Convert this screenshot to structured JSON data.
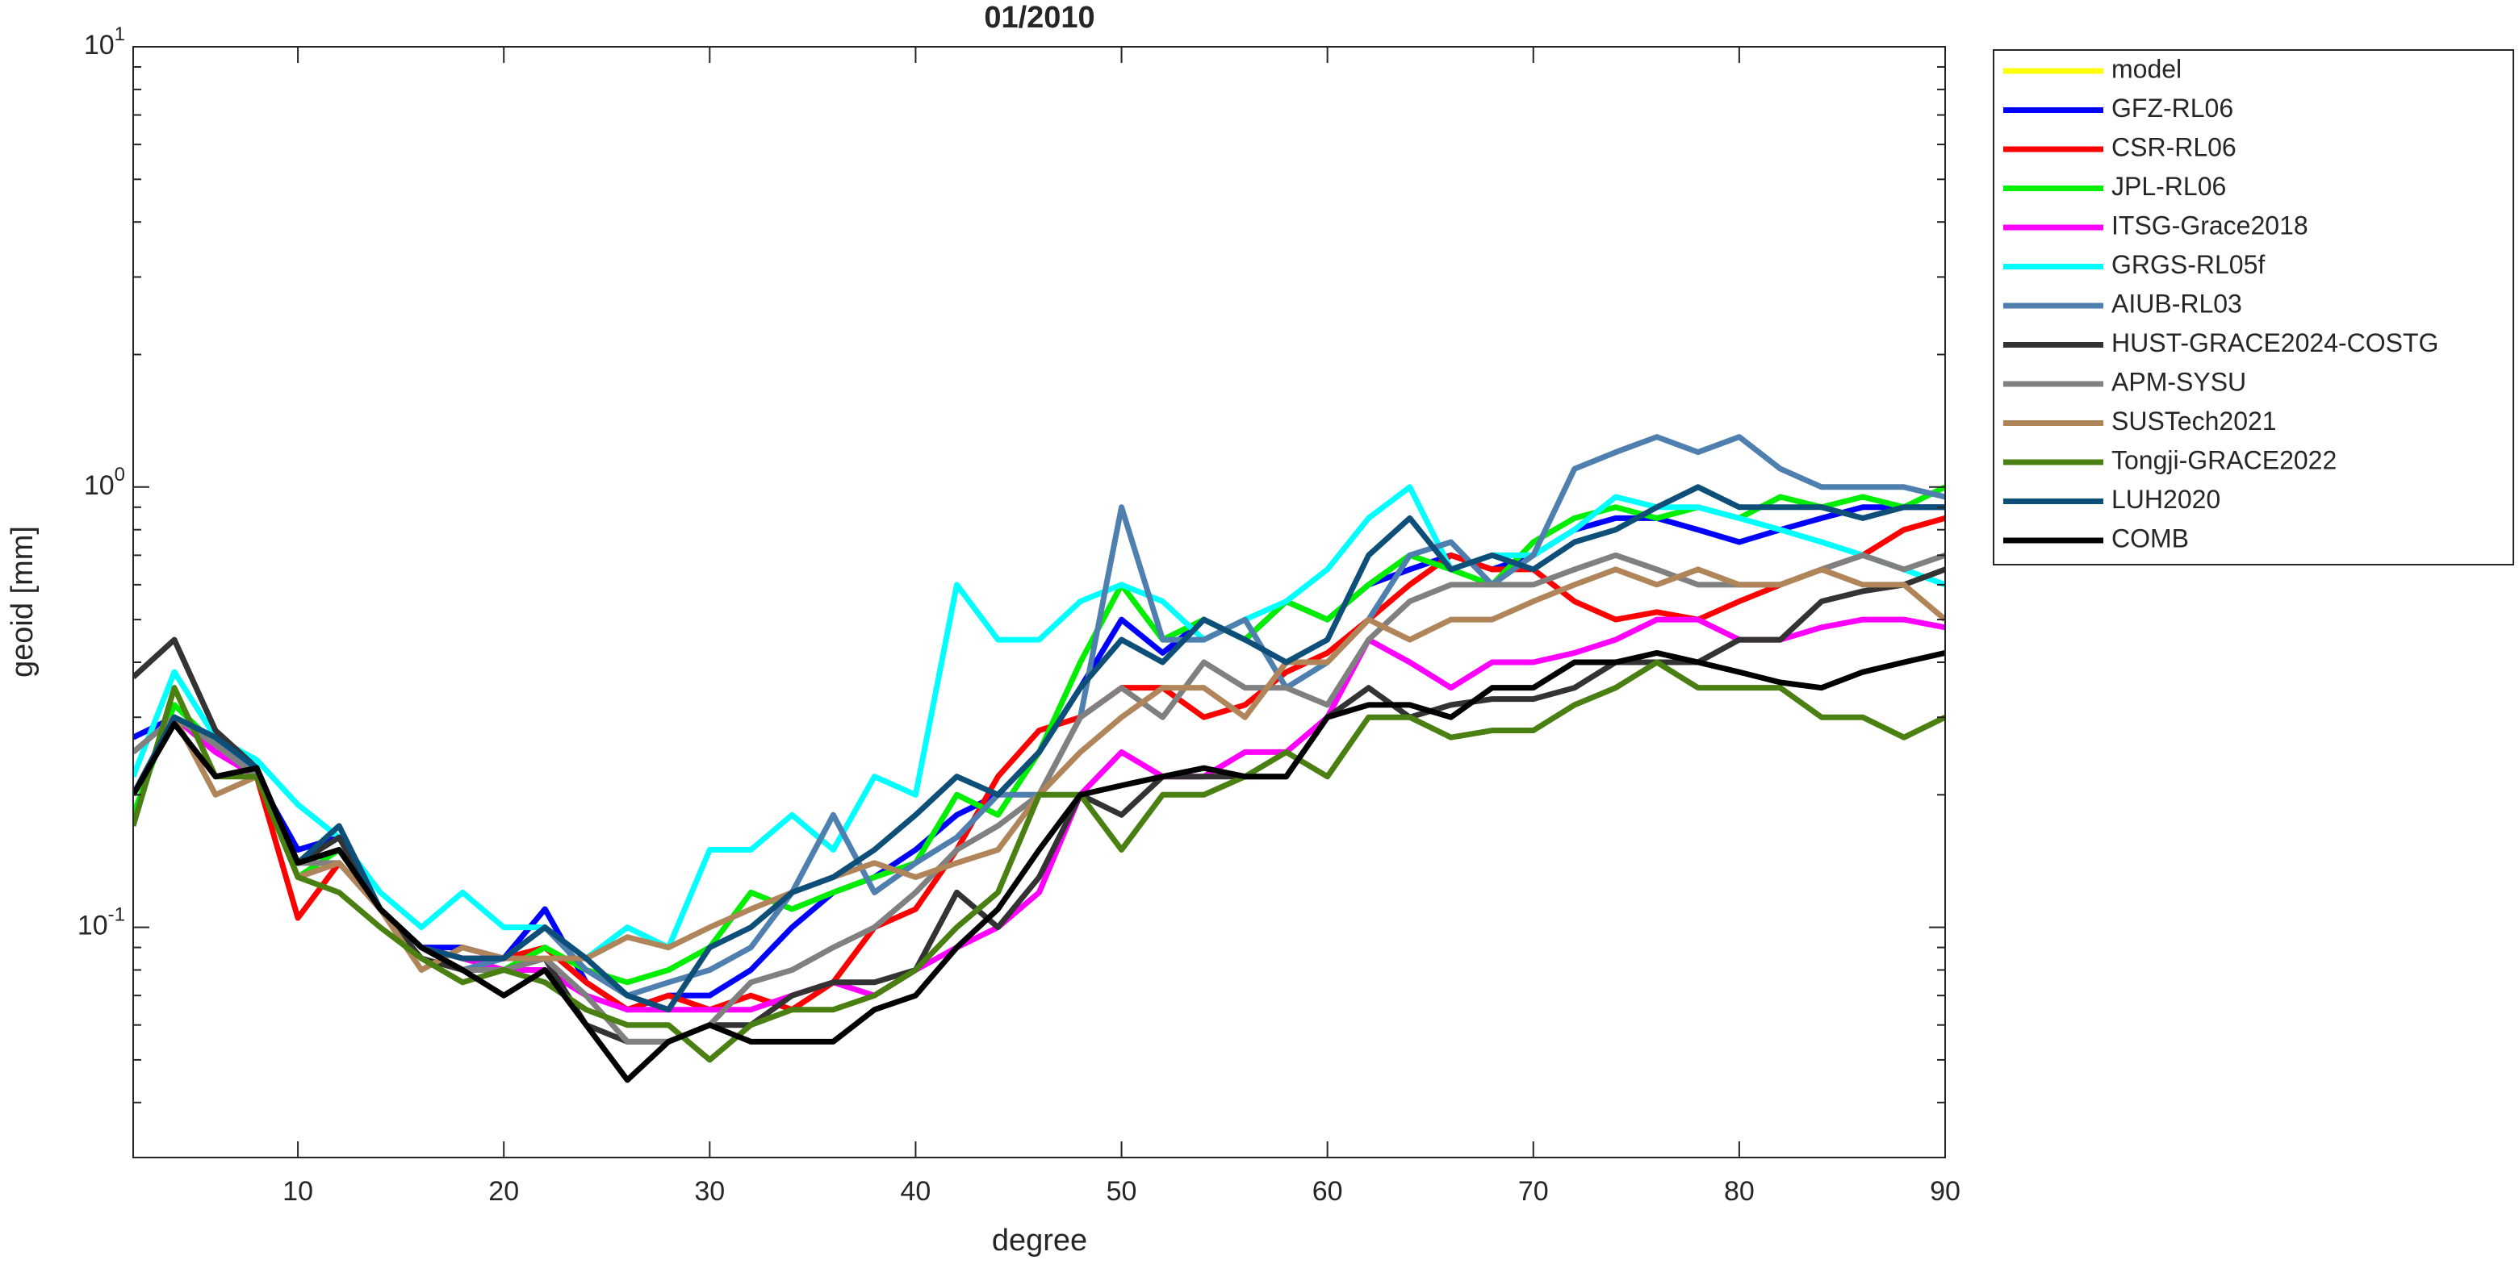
{
  "chart_data": {
    "type": "line",
    "title": "01/2010",
    "xlabel": "degree",
    "ylabel": "geoid [mm]",
    "yscale": "log",
    "grid": false,
    "legend": "outside-top-right",
    "xlim": [
      2,
      90
    ],
    "ylim": [
      0.03,
      10
    ],
    "xticks": [
      10,
      20,
      30,
      40,
      50,
      60,
      70,
      80,
      90
    ],
    "yticks": [
      {
        "value": 0.1,
        "label": "10^{-1}"
      },
      {
        "value": 1,
        "label": "10^{0}"
      },
      {
        "value": 10,
        "label": "10^{1}"
      }
    ],
    "yminorticks": [
      0.04,
      0.05,
      0.06,
      0.07,
      0.08,
      0.09,
      0.2,
      0.3,
      0.4,
      0.5,
      0.6,
      0.7,
      0.8,
      0.9,
      2,
      3,
      4,
      5,
      6,
      7,
      8,
      9
    ],
    "x": [
      2,
      4,
      6,
      8,
      10,
      12,
      14,
      16,
      18,
      20,
      22,
      24,
      26,
      28,
      30,
      32,
      34,
      36,
      38,
      40,
      42,
      44,
      46,
      48,
      50,
      52,
      54,
      56,
      58,
      60,
      62,
      64,
      66,
      68,
      70,
      72,
      74,
      76,
      78,
      80,
      82,
      84,
      86,
      88,
      90
    ],
    "series": [
      {
        "name": "model",
        "color": "#ffff00",
        "values": [
          null,
          null,
          null,
          null,
          null,
          null,
          null,
          null,
          null,
          null,
          null,
          null,
          null,
          null,
          null,
          null,
          null,
          null,
          null,
          null,
          null,
          null,
          null,
          null,
          null,
          null,
          null,
          null,
          null,
          null,
          null,
          null,
          null,
          null,
          null,
          null,
          null,
          null,
          null,
          null,
          null,
          null,
          null,
          null,
          null
        ]
      },
      {
        "name": "GFZ-RL06",
        "color": "#0000ff",
        "values": [
          0.27,
          0.3,
          0.26,
          0.22,
          0.15,
          0.16,
          0.11,
          0.09,
          0.09,
          0.085,
          0.11,
          0.075,
          0.065,
          0.07,
          0.07,
          0.08,
          0.1,
          0.12,
          0.13,
          0.15,
          0.18,
          0.2,
          0.25,
          0.35,
          0.5,
          0.42,
          0.5,
          0.45,
          0.55,
          0.5,
          0.6,
          0.65,
          0.7,
          0.65,
          0.7,
          0.8,
          0.85,
          0.85,
          0.8,
          0.75,
          0.8,
          0.85,
          0.9,
          0.9,
          0.9
        ]
      },
      {
        "name": "CSR-RL06",
        "color": "#ff0000",
        "values": [
          0.2,
          0.3,
          0.25,
          0.22,
          0.105,
          0.14,
          0.11,
          0.09,
          0.085,
          0.085,
          0.09,
          0.075,
          0.065,
          0.07,
          0.065,
          0.07,
          0.065,
          0.075,
          0.1,
          0.11,
          0.15,
          0.22,
          0.28,
          0.3,
          0.35,
          0.35,
          0.3,
          0.32,
          0.38,
          0.42,
          0.5,
          0.6,
          0.7,
          0.65,
          0.65,
          0.55,
          0.5,
          0.52,
          0.5,
          0.55,
          0.6,
          0.65,
          0.7,
          0.8,
          0.85
        ]
      },
      {
        "name": "JPL-RL06",
        "color": "#00ee00",
        "values": [
          0.18,
          0.32,
          0.26,
          0.23,
          0.13,
          0.15,
          0.11,
          0.09,
          0.085,
          0.08,
          0.09,
          0.08,
          0.075,
          0.08,
          0.09,
          0.12,
          0.11,
          0.12,
          0.13,
          0.14,
          0.2,
          0.18,
          0.25,
          0.4,
          0.6,
          0.45,
          0.5,
          0.45,
          0.55,
          0.5,
          0.6,
          0.7,
          0.65,
          0.6,
          0.75,
          0.85,
          0.9,
          0.85,
          0.9,
          0.85,
          0.95,
          0.9,
          0.95,
          0.9,
          1.0
        ]
      },
      {
        "name": "ITSG-Grace2018",
        "color": "#ff00ff",
        "values": [
          0.2,
          0.3,
          0.25,
          0.22,
          0.13,
          0.14,
          0.11,
          0.09,
          0.085,
          0.08,
          0.08,
          0.07,
          0.065,
          0.065,
          0.065,
          0.065,
          0.07,
          0.075,
          0.07,
          0.08,
          0.09,
          0.1,
          0.12,
          0.2,
          0.25,
          0.22,
          0.22,
          0.25,
          0.25,
          0.3,
          0.45,
          0.4,
          0.35,
          0.4,
          0.4,
          0.42,
          0.45,
          0.5,
          0.5,
          0.45,
          0.45,
          0.48,
          0.5,
          0.5,
          0.48
        ]
      },
      {
        "name": "GRGS-RL05f",
        "color": "#00ffff",
        "values": [
          0.22,
          0.38,
          0.27,
          0.24,
          0.19,
          0.16,
          0.12,
          0.1,
          0.12,
          0.1,
          0.1,
          0.085,
          0.1,
          0.09,
          0.15,
          0.15,
          0.18,
          0.15,
          0.22,
          0.2,
          0.6,
          0.45,
          0.45,
          0.55,
          0.6,
          0.55,
          0.45,
          0.5,
          0.55,
          0.65,
          0.85,
          1.0,
          0.65,
          0.7,
          0.7,
          0.8,
          0.95,
          0.9,
          0.9,
          0.85,
          0.8,
          0.75,
          0.7,
          0.65,
          0.6
        ]
      },
      {
        "name": "AIUB-RL03",
        "color": "#4f7fae",
        "values": [
          0.25,
          0.3,
          0.27,
          0.22,
          0.14,
          0.15,
          0.11,
          0.09,
          0.08,
          0.085,
          0.1,
          0.08,
          0.07,
          0.075,
          0.08,
          0.09,
          0.12,
          0.18,
          0.12,
          0.14,
          0.16,
          0.2,
          0.2,
          0.3,
          0.9,
          0.45,
          0.45,
          0.5,
          0.35,
          0.4,
          0.5,
          0.7,
          0.75,
          0.6,
          0.7,
          1.1,
          1.2,
          1.3,
          1.2,
          1.3,
          1.1,
          1.0,
          1.0,
          1.0,
          0.95
        ]
      },
      {
        "name": "HUST-GRACE2024-COSTG",
        "color": "#333333",
        "values": [
          0.37,
          0.45,
          0.28,
          0.23,
          0.14,
          0.16,
          0.11,
          0.085,
          0.08,
          0.08,
          0.085,
          0.06,
          0.055,
          0.055,
          0.06,
          0.06,
          0.07,
          0.075,
          0.075,
          0.08,
          0.12,
          0.1,
          0.13,
          0.2,
          0.18,
          0.22,
          0.22,
          0.22,
          0.22,
          0.3,
          0.35,
          0.3,
          0.32,
          0.33,
          0.33,
          0.35,
          0.4,
          0.4,
          0.4,
          0.45,
          0.45,
          0.55,
          0.58,
          0.6,
          0.65
        ]
      },
      {
        "name": "APM-SYSU",
        "color": "#808080",
        "values": [
          0.25,
          0.3,
          0.26,
          0.22,
          0.14,
          0.14,
          0.11,
          0.09,
          0.08,
          0.08,
          0.085,
          0.07,
          0.055,
          0.055,
          0.06,
          0.075,
          0.08,
          0.09,
          0.1,
          0.12,
          0.15,
          0.17,
          0.2,
          0.3,
          0.35,
          0.3,
          0.4,
          0.35,
          0.35,
          0.32,
          0.45,
          0.55,
          0.6,
          0.6,
          0.6,
          0.65,
          0.7,
          0.65,
          0.6,
          0.6,
          0.6,
          0.65,
          0.7,
          0.65,
          0.7
        ]
      },
      {
        "name": "SUSTech2021",
        "color": "#b0855a",
        "values": [
          0.2,
          0.3,
          0.2,
          0.22,
          0.13,
          0.14,
          0.11,
          0.08,
          0.09,
          0.085,
          0.085,
          0.085,
          0.095,
          0.09,
          0.1,
          0.11,
          0.12,
          0.13,
          0.14,
          0.13,
          0.14,
          0.15,
          0.2,
          0.25,
          0.3,
          0.35,
          0.35,
          0.3,
          0.4,
          0.4,
          0.5,
          0.45,
          0.5,
          0.5,
          0.55,
          0.6,
          0.65,
          0.6,
          0.65,
          0.6,
          0.6,
          0.65,
          0.6,
          0.6,
          0.5
        ]
      },
      {
        "name": "Tongji-GRACE2022",
        "color": "#4a7f12",
        "values": [
          0.17,
          0.35,
          0.22,
          0.22,
          0.13,
          0.12,
          0.1,
          0.085,
          0.075,
          0.08,
          0.075,
          0.065,
          0.06,
          0.06,
          0.05,
          0.06,
          0.065,
          0.065,
          0.07,
          0.08,
          0.1,
          0.12,
          0.2,
          0.2,
          0.15,
          0.2,
          0.2,
          0.22,
          0.25,
          0.22,
          0.3,
          0.3,
          0.27,
          0.28,
          0.28,
          0.32,
          0.35,
          0.4,
          0.35,
          0.35,
          0.35,
          0.3,
          0.3,
          0.27,
          0.3
        ]
      },
      {
        "name": "LUH2020",
        "color": "#0d4f79",
        "values": [
          0.2,
          0.3,
          0.27,
          0.23,
          0.14,
          0.17,
          0.11,
          0.09,
          0.085,
          0.085,
          0.1,
          0.085,
          0.07,
          0.065,
          0.09,
          0.1,
          0.12,
          0.13,
          0.15,
          0.18,
          0.22,
          0.2,
          0.25,
          0.35,
          0.45,
          0.4,
          0.5,
          0.45,
          0.4,
          0.45,
          0.7,
          0.85,
          0.65,
          0.7,
          0.65,
          0.75,
          0.8,
          0.9,
          1.0,
          0.9,
          0.9,
          0.9,
          0.85,
          0.9,
          0.9
        ]
      },
      {
        "name": "COMB",
        "color": "#000000",
        "values": [
          0.2,
          0.29,
          0.22,
          0.23,
          0.14,
          0.15,
          0.11,
          0.09,
          0.08,
          0.07,
          0.08,
          0.06,
          0.045,
          0.055,
          0.06,
          0.055,
          0.055,
          0.055,
          0.065,
          0.07,
          0.09,
          0.11,
          0.15,
          0.2,
          0.21,
          0.22,
          0.23,
          0.22,
          0.22,
          0.3,
          0.32,
          0.32,
          0.3,
          0.35,
          0.35,
          0.4,
          0.4,
          0.42,
          0.4,
          0.38,
          0.36,
          0.35,
          0.38,
          0.4,
          0.42
        ]
      }
    ]
  }
}
